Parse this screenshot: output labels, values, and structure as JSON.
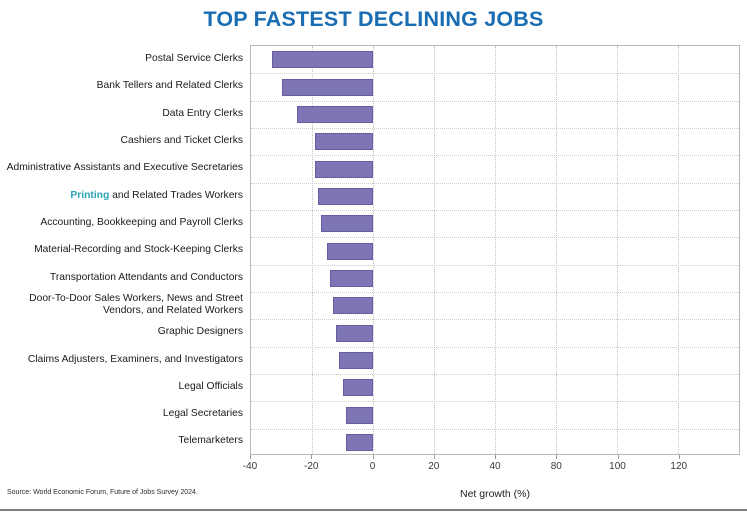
{
  "title": "TOP FASTEST DECLINING JOBS",
  "source": "Source: World Economic Forum, Future of Jobs Survey 2024.",
  "axis": {
    "label": "Net growth (%)",
    "tick_labels": [
      "-40",
      "-20",
      "0",
      "20",
      "40",
      "80",
      "100",
      "120"
    ],
    "intervals": 8,
    "units_per_interval": 20,
    "axis_min": -40
  },
  "colors": {
    "title": "#1a6cb3",
    "bar_fill": "#7e76b4",
    "bar_border": "#665ea3",
    "highlight_word": "#29a4b5",
    "gridline": "#c2c2c2",
    "plot_border": "#b9b9b9",
    "label_text": "#1a1a1a"
  },
  "chart_data": {
    "type": "bar",
    "orientation": "horizontal",
    "title": "TOP FASTEST DECLINING JOBS",
    "xlabel": "Net growth (%)",
    "xlim": [
      -40,
      120
    ],
    "xtick_labels": [
      "-40",
      "-20",
      "0",
      "20",
      "40",
      "80",
      "100",
      "120"
    ],
    "grid": true,
    "categories": [
      "Postal Service Clerks",
      "Bank Tellers and Related Clerks",
      "Data Entry Clerks",
      "Cashiers and Ticket Clerks",
      "Administrative Assistants and Executive Secretaries",
      "Printing and Related Trades Workers",
      "Accounting, Bookkeeping and Payroll Clerks",
      "Material-Recording and Stock-Keeping Clerks",
      "Transportation Attendants and Conductors",
      "Door-To-Door Sales Workers, News and Street Vendors, and Related Workers",
      "Graphic Designers",
      "Claims Adjusters, Examiners, and Investigators",
      "Legal Officials",
      "Legal Secretaries",
      "Telemarketers"
    ],
    "values": [
      -33,
      -30,
      -25,
      -19,
      -19,
      -18,
      -17,
      -15,
      -14,
      -13,
      -12,
      -11,
      -10,
      -9,
      -9
    ],
    "highlighted_word": {
      "row_index": 5,
      "word": "Printing"
    },
    "legend": null
  }
}
